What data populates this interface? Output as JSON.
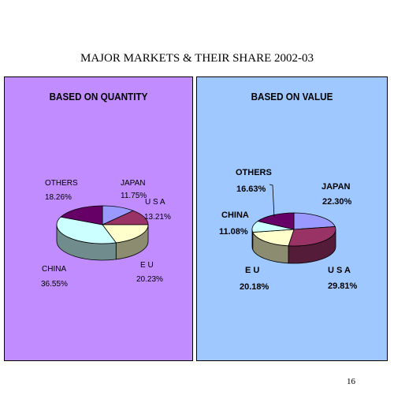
{
  "title": "MAJOR MARKETS & THEIR SHARE 2002-03",
  "page_number": "16",
  "colors": {
    "left_panel_bg": "#c08cff",
    "right_panel_bg": "#9ec8ff",
    "japan": "#9999ff",
    "usa": "#993366",
    "eu": "#ffffcc",
    "china": "#ccffff",
    "others": "#660066"
  },
  "chart_data": [
    {
      "type": "pie",
      "title": "BASED ON QUANTITY",
      "style": "3d",
      "slices": [
        {
          "label": "JAPAN",
          "value": 11.75,
          "display": "11.75%",
          "color": "#9999ff"
        },
        {
          "label": "U S A",
          "value": 13.21,
          "display": "13.21%",
          "color": "#993366"
        },
        {
          "label": "E U",
          "value": 20.23,
          "display": "20.23%",
          "color": "#ffffcc"
        },
        {
          "label": "CHINA",
          "value": 36.55,
          "display": "36.55%",
          "color": "#ccffff"
        },
        {
          "label": "OTHERS",
          "value": 18.26,
          "display": "18.26%",
          "color": "#660066"
        }
      ]
    },
    {
      "type": "pie",
      "title": "BASED ON VALUE",
      "style": "3d",
      "slices": [
        {
          "label": "JAPAN",
          "value": 22.3,
          "display": "22.30%",
          "color": "#9999ff"
        },
        {
          "label": "U S A",
          "value": 29.81,
          "display": "29.81%",
          "color": "#993366"
        },
        {
          "label": "E U",
          "value": 20.18,
          "display": "20.18%",
          "color": "#ffffcc"
        },
        {
          "label": "CHINA",
          "value": 11.08,
          "display": "11.08%",
          "color": "#ccffff"
        },
        {
          "label": "OTHERS",
          "value": 16.63,
          "display": "16.63%",
          "color": "#660066"
        }
      ]
    }
  ]
}
